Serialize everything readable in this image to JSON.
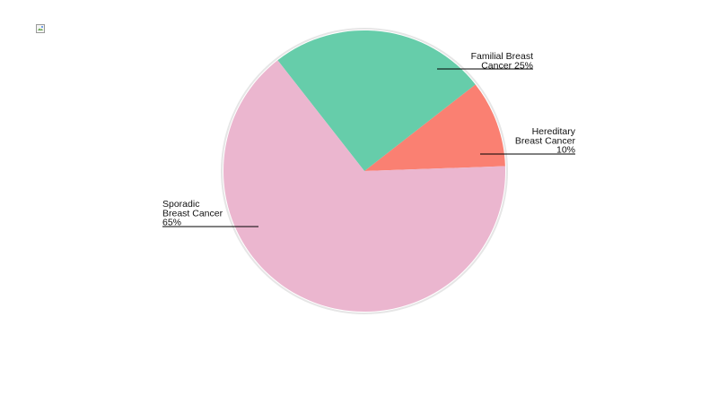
{
  "chart_data": {
    "type": "pie",
    "title": "",
    "slices": [
      {
        "label_lines": [
          "Hereditary",
          "Breast Cancer",
          "10%"
        ],
        "value": 10,
        "color": "#fa8072"
      },
      {
        "label_lines": [
          "Familial Breast",
          "Cancer 25%"
        ],
        "value": 25,
        "color": "#66cdaa"
      },
      {
        "label_lines": [
          "Sporadic",
          "Breast Cancer",
          "65%"
        ],
        "value": 65,
        "color": "#ebb6cf"
      }
    ],
    "outline_color": "#e6e6e6"
  }
}
